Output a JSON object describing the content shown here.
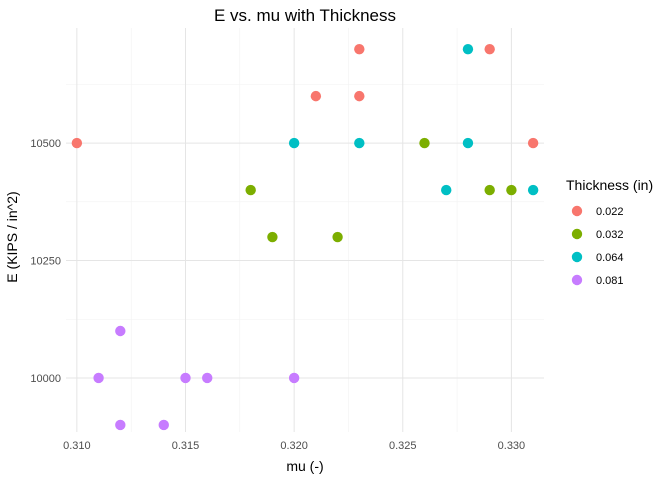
{
  "chart_data": {
    "type": "scatter",
    "title": "E vs. mu with Thickness",
    "xlabel": "mu (-)",
    "ylabel": "E (KIPS / in^2)",
    "xlim": [
      0.3095,
      0.3315
    ],
    "ylim": [
      9885,
      10745
    ],
    "x_ticks": [
      0.31,
      0.315,
      0.32,
      0.325,
      0.33
    ],
    "x_tick_labels": [
      "0.310",
      "0.315",
      "0.320",
      "0.325",
      "0.330"
    ],
    "y_ticks": [
      10000,
      10250,
      10500
    ],
    "y_tick_labels": [
      "10000",
      "10250",
      "10500"
    ],
    "grid": true,
    "legend": {
      "title": "Thickness (in)",
      "placement": "right"
    },
    "series": [
      {
        "name": "0.022",
        "color": "#F8766D",
        "points": [
          [
            0.31,
            10500
          ],
          [
            0.321,
            10600
          ],
          [
            0.323,
            10600
          ],
          [
            0.323,
            10700
          ],
          [
            0.329,
            10700
          ],
          [
            0.331,
            10500
          ]
        ]
      },
      {
        "name": "0.032",
        "color": "#7CAE00",
        "points": [
          [
            0.318,
            10400
          ],
          [
            0.319,
            10300
          ],
          [
            0.322,
            10300
          ],
          [
            0.326,
            10500
          ],
          [
            0.329,
            10400
          ],
          [
            0.33,
            10400
          ]
        ]
      },
      {
        "name": "0.064",
        "color": "#00BFC4",
        "points": [
          [
            0.32,
            10500
          ],
          [
            0.323,
            10500
          ],
          [
            0.327,
            10400
          ],
          [
            0.328,
            10500
          ],
          [
            0.328,
            10700
          ],
          [
            0.331,
            10400
          ]
        ]
      },
      {
        "name": "0.081",
        "color": "#C77CFF",
        "points": [
          [
            0.311,
            10000
          ],
          [
            0.312,
            10100
          ],
          [
            0.312,
            9900
          ],
          [
            0.314,
            9900
          ],
          [
            0.315,
            10000
          ],
          [
            0.316,
            10000
          ],
          [
            0.32,
            10000
          ]
        ]
      }
    ]
  }
}
